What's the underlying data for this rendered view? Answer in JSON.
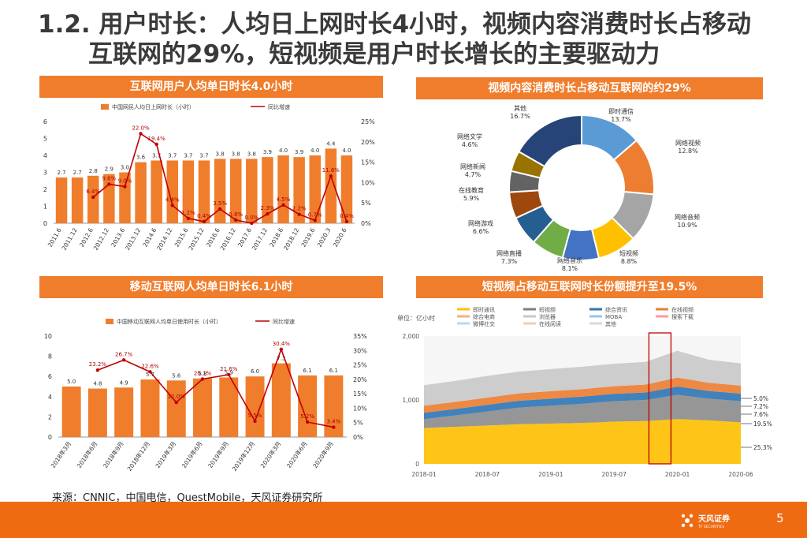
{
  "title": {
    "line1": "1.2. 用户时长：人均日上网时长4小时，视频内容消费时长占移动",
    "line2": "互联网的29%，短视频是用户时长增长的主要驱动力"
  },
  "panels": {
    "p1": "互联网用户人均单日时长4.0小时",
    "p2": "视频内容消费时长占移动互联网的约29%",
    "p3": "移动互联网人均单日时长6.1小时",
    "p4": "短视频占移动互联网时长份额提升至19.5%"
  },
  "source": "来源：CNNIC，中国电信，QuestMobile，天风证券研究所",
  "footer": {
    "brand": "天风证券",
    "brand_sub": "TF SECURITIES",
    "page": "5"
  },
  "colors": {
    "orange": "#f07d2c",
    "red": "#c00000"
  },
  "chart_data": [
    {
      "type": "bar+line",
      "legend": [
        "中国网民人均日上网时长（小时）",
        "同比增速"
      ],
      "categories": [
        "2011.6",
        "2011.12",
        "2012.6",
        "2012.12",
        "2013.6",
        "2013.12",
        "2014.6",
        "2014.12",
        "2015.6",
        "2015.12",
        "2016.6",
        "2016.12",
        "2017.6",
        "2017.12",
        "2018.6",
        "2018.12",
        "2019.6",
        "2020.3",
        "2020.6"
      ],
      "bars": [
        2.7,
        2.7,
        2.8,
        2.9,
        3.0,
        3.6,
        3.7,
        3.7,
        3.7,
        3.7,
        3.8,
        3.8,
        3.8,
        3.9,
        4.0,
        3.9,
        4.0,
        4.4,
        4.0
      ],
      "bar_labels": [
        "2.7",
        "2.7",
        "2.8",
        "2.9",
        "3.0",
        "3.6",
        "3.7",
        "3.7",
        "3.7",
        "3.7",
        "3.8",
        "3.8",
        "3.8",
        "3.9",
        "4.0",
        "3.9",
        "4.0",
        "4.4",
        "4.0"
      ],
      "line": [
        null,
        null,
        6.4,
        9.6,
        9.0,
        22.0,
        19.4,
        4.4,
        1.2,
        0.4,
        3.5,
        0.8,
        0.0,
        2.3,
        4.5,
        2.2,
        0.7,
        11.6,
        0.4
      ],
      "line_labels": [
        "",
        "",
        "6.4%",
        "9.6%",
        "9.0%",
        "22.0%",
        "19.4%",
        "4.4%",
        "1.2%",
        "0.4%",
        "3.5%",
        "0.8%",
        "0.0%",
        "2.3%",
        "4.5%",
        "2.2%",
        "0.7%",
        "11.6%",
        "0.4%"
      ],
      "left_ticks": [
        "0",
        "1",
        "2",
        "3",
        "4",
        "5",
        "6"
      ],
      "right_ticks": [
        "0%",
        "5%",
        "10%",
        "15%",
        "20%",
        "25%"
      ],
      "ylim": [
        0,
        6
      ],
      "y2lim": [
        0,
        25
      ]
    },
    {
      "type": "pie",
      "slices": [
        {
          "name": "即时通信",
          "label": "13.7%",
          "value": 13.7,
          "color": "#5b9bd5"
        },
        {
          "name": "网络视频",
          "label": "12.8%",
          "value": 12.8,
          "color": "#ed7d31"
        },
        {
          "name": "网络音频",
          "label": "10.9%",
          "value": 10.9,
          "color": "#a5a5a5"
        },
        {
          "name": "短视频",
          "label": "8.8%",
          "value": 8.8,
          "color": "#ffc000"
        },
        {
          "name": "网络音乐",
          "label": "8.1%",
          "value": 8.1,
          "color": "#4472c4"
        },
        {
          "name": "网络直播",
          "label": "7.3%",
          "value": 7.3,
          "color": "#70ad47"
        },
        {
          "name": "网络游戏",
          "label": "6.6%",
          "value": 6.6,
          "color": "#255e91"
        },
        {
          "name": "在线教育",
          "label": "5.9%",
          "value": 5.9,
          "color": "#9e480e"
        },
        {
          "name": "网络新闻",
          "label": "4.7%",
          "value": 4.7,
          "color": "#636363"
        },
        {
          "name": "网络文学",
          "label": "4.6%",
          "value": 4.6,
          "color": "#997300"
        },
        {
          "name": "其他",
          "label": "16.7%",
          "value": 16.7,
          "color": "#264478"
        }
      ]
    },
    {
      "type": "bar+line",
      "legend": [
        "中国移动互联网人均单日使用时长（小时）",
        "同比增速"
      ],
      "categories": [
        "2018年3月",
        "2018年6月",
        "2018年9月",
        "2018年12月",
        "2019年3月",
        "2019年6月",
        "2019年9月",
        "2019年12月",
        "2020年3月",
        "2020年6月",
        "2020年9月"
      ],
      "bars": [
        5.0,
        4.8,
        4.9,
        5.7,
        5.6,
        5.8,
        5.9,
        6.0,
        7.3,
        6.1,
        6.1
      ],
      "bar_labels": [
        "5.0",
        "4.8",
        "4.9",
        "5.7",
        "5.6",
        "5.8",
        "5.9",
        "6.0",
        "7.3",
        "6.1",
        "6.1"
      ],
      "line": [
        null,
        23.2,
        26.7,
        22.6,
        12.0,
        20.1,
        21.6,
        5.5,
        30.4,
        5.2,
        3.4
      ],
      "line_labels": [
        "",
        "23.2%",
        "26.7%",
        "22.6%",
        "12.0%",
        "20.1%",
        "21.6%",
        "5.5%",
        "30.4%",
        "5.2%",
        "3.4%"
      ],
      "left_ticks": [
        "0",
        "2",
        "4",
        "6",
        "8",
        "10"
      ],
      "right_ticks": [
        "0%",
        "5%",
        "10%",
        "15%",
        "20%",
        "25%",
        "30%",
        "35%"
      ],
      "ylim": [
        0,
        10
      ],
      "y2lim": [
        0,
        35
      ]
    },
    {
      "type": "area",
      "unit_label": "单位：亿小时",
      "legend": [
        {
          "name": "即时通讯",
          "color": "#ffc000"
        },
        {
          "name": "短视频",
          "color": "#7f7f7f"
        },
        {
          "name": "综合资讯",
          "color": "#2e75b6"
        },
        {
          "name": "在线视频",
          "color": "#ed7d31"
        },
        {
          "name": "综合电商",
          "color": "#f4b183"
        },
        {
          "name": "浏览器",
          "color": "#c9c9c9"
        },
        {
          "name": "MOBA",
          "color": "#9dc3e6"
        },
        {
          "name": "搜索下载",
          "color": "#ff9999"
        },
        {
          "name": "微博社交",
          "color": "#bdd7ee"
        },
        {
          "name": "在线阅读",
          "color": "#f8cbad"
        },
        {
          "name": "其他",
          "color": "#d9d9d9"
        }
      ],
      "x_ticks": [
        "2018-01",
        "2018-07",
        "2019-01",
        "2019-07",
        "2020-01",
        "2020-06"
      ],
      "y_ticks": [
        "0",
        "1,000",
        "2,000"
      ],
      "ylim": [
        0,
        2000
      ],
      "series_totals": [
        {
          "name": "即时通讯",
          "values": [
            560,
            580,
            600,
            620,
            630,
            640,
            660,
            670,
            700,
            680,
            650
          ]
        },
        {
          "name": "短视频",
          "values": [
            140,
            180,
            220,
            260,
            280,
            300,
            320,
            330,
            380,
            340,
            330
          ]
        },
        {
          "name": "综合资讯",
          "values": [
            100,
            100,
            105,
            108,
            110,
            112,
            115,
            118,
            130,
            120,
            118
          ]
        },
        {
          "name": "在线视频",
          "values": [
            110,
            110,
            112,
            115,
            118,
            118,
            120,
            122,
            140,
            128,
            125
          ]
        },
        {
          "name": "其他",
          "values": [
            320,
            330,
            340,
            340,
            345,
            350,
            352,
            356,
            420,
            360,
            350
          ]
        }
      ],
      "end_labels": [
        "5.0%",
        "7.2%",
        "7.6%",
        "19.5%",
        "25.3%"
      ]
    }
  ]
}
